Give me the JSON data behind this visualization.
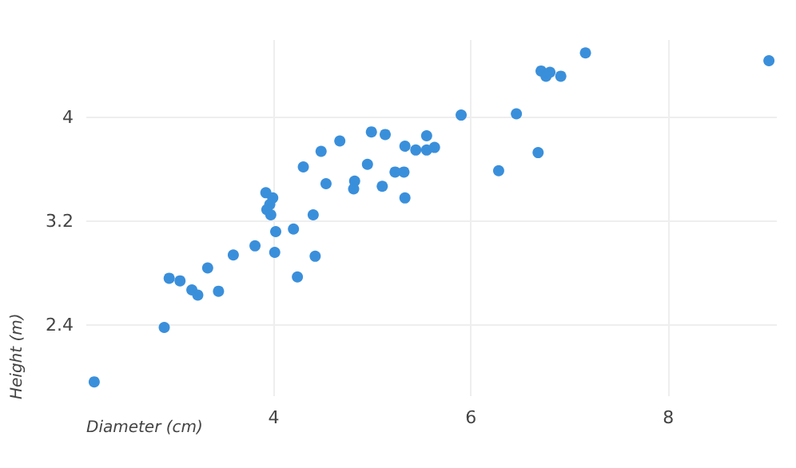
{
  "chart_data": {
    "type": "scatter",
    "xlabel": "Diameter (cm)",
    "ylabel": "Height (m)",
    "x": [
      2.18,
      2.89,
      2.94,
      3.05,
      3.17,
      3.23,
      3.33,
      3.44,
      3.59,
      3.81,
      4.01,
      4.02,
      4.24,
      4.2,
      4.42,
      4.4,
      3.92,
      3.99,
      3.96,
      3.93,
      3.97,
      4.3,
      4.53,
      4.48,
      4.67,
      4.95,
      4.82,
      4.81,
      4.99,
      5.13,
      5.1,
      5.23,
      5.32,
      5.33,
      5.33,
      5.44,
      5.55,
      5.55,
      5.63,
      5.9,
      6.28,
      6.46,
      6.68,
      6.71,
      6.76,
      6.8,
      6.91,
      7.16,
      9.02
    ],
    "values": [
      1.96,
      2.38,
      2.76,
      2.74,
      2.67,
      2.63,
      2.84,
      2.66,
      2.94,
      3.01,
      2.96,
      3.12,
      2.77,
      3.14,
      2.93,
      3.25,
      3.42,
      3.38,
      3.33,
      3.29,
      3.25,
      3.62,
      3.49,
      3.74,
      3.82,
      3.64,
      3.51,
      3.45,
      3.89,
      3.87,
      3.47,
      3.58,
      3.58,
      3.38,
      3.78,
      3.75,
      3.75,
      3.86,
      3.77,
      4.02,
      3.59,
      4.03,
      3.73,
      4.36,
      4.32,
      4.35,
      4.32,
      4.5,
      4.44
    ],
    "color": "#3a8fdb",
    "marker": "circle",
    "xlim": [
      2.1,
      9.1
    ],
    "ylim": [
      1.85,
      4.6
    ],
    "xticks": [
      4,
      6,
      8
    ],
    "yticks": [
      2.4,
      3.2,
      4
    ],
    "grid": true
  }
}
